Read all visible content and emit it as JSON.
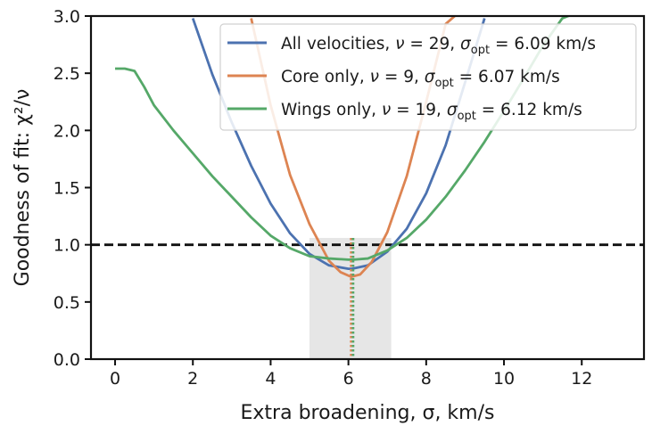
{
  "chart_data": {
    "type": "line",
    "xlabel": "Extra broadening, σ, km/s",
    "ylabel": "Goodness of fit: χ²/ν",
    "xlim": [
      -0.62,
      13.6
    ],
    "ylim": [
      0.0,
      3.0
    ],
    "xticks": [
      0,
      2,
      4,
      6,
      8,
      10,
      12
    ],
    "yticks": [
      0.0,
      0.5,
      1.0,
      1.5,
      2.0,
      2.5,
      3.0
    ],
    "ytick_labels": [
      "0.0",
      "0.5",
      "1.0",
      "1.5",
      "2.0",
      "2.5",
      "3.0"
    ],
    "grid": false,
    "legend_position": "top-right",
    "reference_line": {
      "y": 1.0,
      "style": "dashed",
      "color": "#111111"
    },
    "shaded_band": {
      "x0": 5.0,
      "x1": 7.1,
      "y0": 0.0,
      "y1": 1.06,
      "color": "#e6e6e6"
    },
    "series": [
      {
        "name": "All velocities, ν = 29, σ_opt = 6.09 km/s",
        "legend": {
          "prefix": "All velocities, ",
          "nu": "ν",
          "nu_value": " = 29, ",
          "sigma": "σ",
          "sub": "opt",
          "rest": " = 6.09 km/s"
        },
        "color": "#4c72b0",
        "optimum": 6.09,
        "x": [
          2.0,
          2.5,
          3.0,
          3.5,
          4.0,
          4.5,
          5.0,
          5.5,
          6.0,
          6.09,
          6.5,
          7.0,
          7.5,
          8.0,
          8.5,
          9.0,
          9.5
        ],
        "y": [
          2.98,
          2.49,
          2.07,
          1.69,
          1.36,
          1.1,
          0.92,
          0.82,
          0.79,
          0.79,
          0.82,
          0.94,
          1.14,
          1.45,
          1.87,
          2.42,
          2.98
        ]
      },
      {
        "name": "Core only, ν = 9, σ_opt = 6.07 km/s",
        "legend": {
          "prefix": "Core only, ",
          "nu": "ν",
          "nu_value": " = 9, ",
          "sigma": "σ",
          "sub": "opt",
          "rest": " = 6.07 km/s"
        },
        "color": "#dd8452",
        "optimum": 6.07,
        "x": [
          3.5,
          4.0,
          4.5,
          5.0,
          5.5,
          5.8,
          6.07,
          6.3,
          6.6,
          7.0,
          7.5,
          8.0,
          8.5,
          8.9
        ],
        "y": [
          2.98,
          2.22,
          1.61,
          1.18,
          0.86,
          0.76,
          0.72,
          0.74,
          0.85,
          1.11,
          1.6,
          2.25,
          2.93,
          3.05
        ]
      },
      {
        "name": "Wings only, ν = 19, σ_opt = 6.12 km/s",
        "legend": {
          "prefix": "Wings only, ",
          "nu": "ν",
          "nu_value": " = 19, ",
          "sigma": "σ",
          "sub": "opt",
          "rest": " = 6.12 km/s"
        },
        "color": "#55a868",
        "optimum": 6.12,
        "x": [
          0.0,
          0.25,
          0.5,
          0.75,
          1.0,
          1.5,
          2.0,
          2.5,
          3.0,
          3.5,
          4.0,
          4.5,
          5.0,
          5.5,
          6.0,
          6.12,
          6.5,
          7.0,
          7.5,
          8.0,
          8.5,
          9.0,
          9.5,
          10.0,
          10.5,
          11.0,
          11.5,
          11.8
        ],
        "y": [
          2.54,
          2.54,
          2.52,
          2.38,
          2.22,
          2.0,
          1.8,
          1.6,
          1.42,
          1.24,
          1.08,
          0.97,
          0.9,
          0.88,
          0.87,
          0.87,
          0.88,
          0.95,
          1.06,
          1.22,
          1.42,
          1.65,
          1.9,
          2.17,
          2.45,
          2.74,
          2.98,
          3.02
        ]
      }
    ]
  }
}
